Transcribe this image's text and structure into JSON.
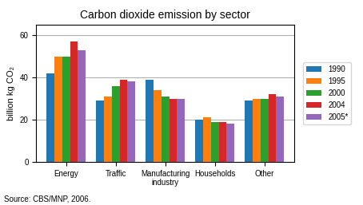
{
  "chart_data": {
    "type": "bar",
    "title": "Carbon dioxide emission by sector",
    "y_label": "billion kg CO₂",
    "annotations": [
      "Source: CBS/MNP, 2006."
    ],
    "categories": [
      "Energy",
      "Traffic",
      "Manufacturing\nindustry",
      "Households",
      "Other"
    ],
    "series": [
      {
        "name": "1990",
        "values": [
          42,
          29,
          39,
          20,
          29
        ]
      },
      {
        "name": "1995",
        "values": [
          50,
          31,
          34,
          21,
          30
        ]
      },
      {
        "name": "2000",
        "values": [
          50,
          36,
          31,
          19,
          30
        ]
      },
      {
        "name": "2004",
        "values": [
          57,
          39,
          30,
          19,
          32
        ]
      },
      {
        "name": "2005*",
        "values": [
          53,
          38,
          30,
          18,
          31
        ]
      }
    ],
    "ylim": [
      0,
      65
    ],
    "yticks": [
      0,
      20,
      40,
      60
    ],
    "grid": true,
    "legend": "right"
  }
}
